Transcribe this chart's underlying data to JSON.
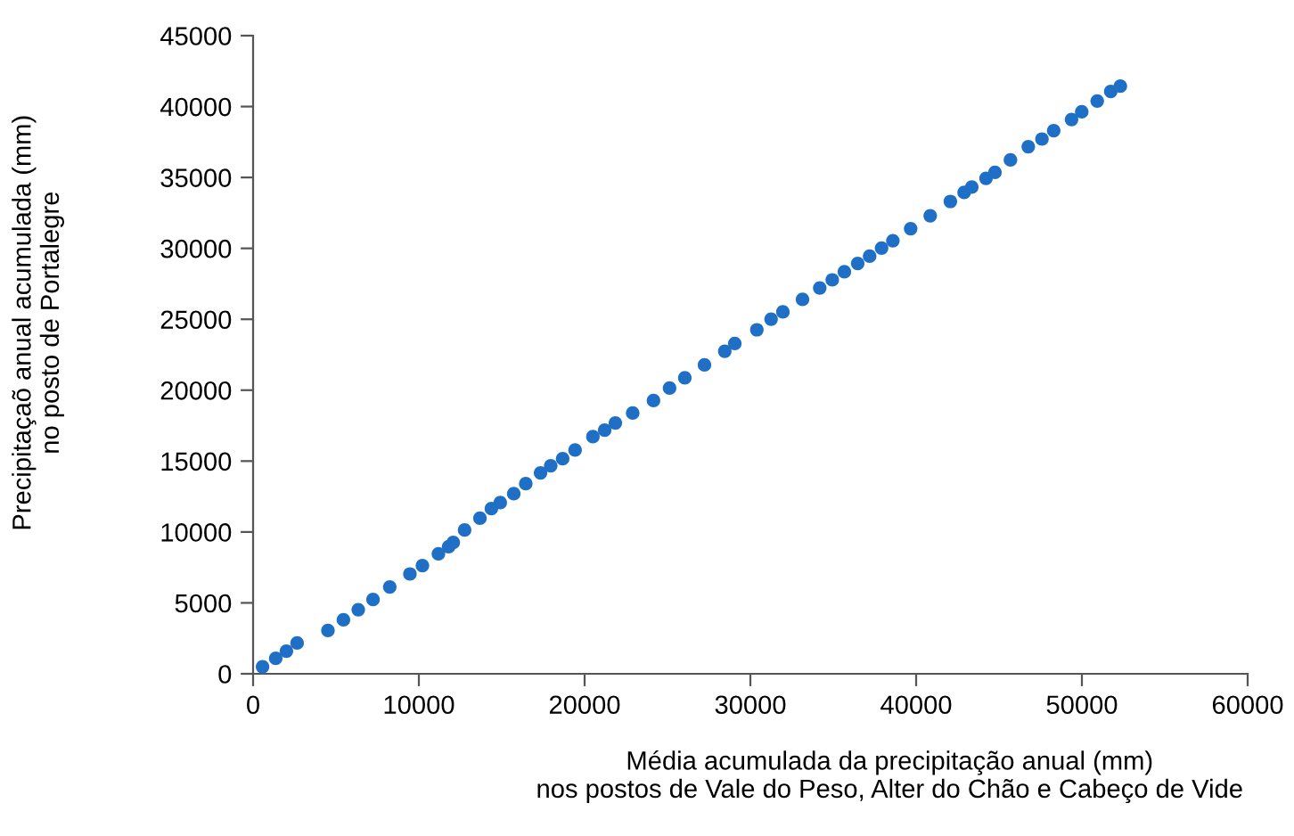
{
  "chart_data": {
    "type": "scatter",
    "xlabel": "Média acumulada da precipitação anual (mm)\nnos postos de Vale do Peso, Alter do Chão e Cabeço de Vide",
    "ylabel": "Precipitaçaõ anual acumulada (mm)\nno posto de Portalegre",
    "xlim": [
      0,
      60000
    ],
    "ylim": [
      0,
      45000
    ],
    "xticks": [
      0,
      10000,
      20000,
      30000,
      40000,
      50000,
      60000
    ],
    "yticks": [
      0,
      5000,
      10000,
      15000,
      20000,
      25000,
      30000,
      35000,
      40000,
      45000
    ],
    "grid": false,
    "legend": false,
    "marker": "circle",
    "series": [
      {
        "color": "#1f6fc6",
        "x": [
          570,
          1365,
          2010,
          2655,
          4515,
          5450,
          6345,
          7235,
          8245,
          9460,
          10215,
          11180,
          11795,
          12075,
          12760,
          13685,
          14375,
          14910,
          15725,
          16450,
          17340,
          17955,
          18675,
          19425,
          20500,
          21210,
          21855,
          22900,
          24155,
          25125,
          26045,
          27230,
          28455,
          29060,
          30390,
          31250,
          31960,
          33145,
          34185,
          34940,
          35670,
          36475,
          37195,
          37915,
          38595,
          39670,
          40850,
          42065,
          42895,
          43355,
          44215,
          44755,
          45690,
          46765,
          47590,
          48300,
          49375,
          49990,
          50925,
          51740,
          52320
        ],
        "values": [
          500,
          1090,
          1600,
          2170,
          3050,
          3810,
          4520,
          5240,
          6120,
          7040,
          7630,
          8460,
          8960,
          9260,
          10140,
          10970,
          11650,
          12070,
          12700,
          13410,
          14170,
          14670,
          15170,
          15780,
          16720,
          17180,
          17690,
          18390,
          19270,
          20150,
          20870,
          21780,
          22750,
          23290,
          24260,
          25010,
          25520,
          26400,
          27210,
          27780,
          28350,
          28940,
          29450,
          30020,
          30540,
          31390,
          32300,
          33310,
          33940,
          34320,
          34940,
          35360,
          36240,
          37170,
          37710,
          38300,
          39090,
          39630,
          40390,
          41070,
          41440
        ]
      }
    ]
  }
}
